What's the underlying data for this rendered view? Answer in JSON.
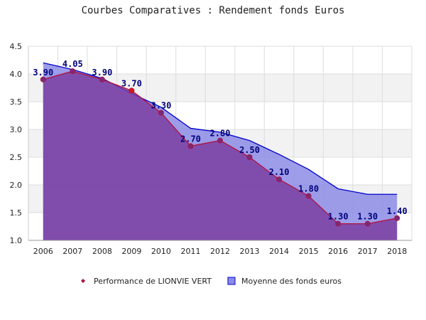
{
  "chart_data": {
    "type": "area",
    "title": "Courbes Comparatives : Rendement fonds Euros",
    "xlabel": "",
    "ylabel": "",
    "categories": [
      "2006",
      "2007",
      "2008",
      "2009",
      "2010",
      "2011",
      "2012",
      "2013",
      "2014",
      "2015",
      "2016",
      "2017",
      "2018"
    ],
    "ylim": [
      1.0,
      4.5
    ],
    "yticks": [
      "1.0",
      "1.5",
      "2.0",
      "2.5",
      "3.0",
      "3.5",
      "4.0",
      "4.5"
    ],
    "grid": true,
    "legend_position": "bottom",
    "series": [
      {
        "name": "Performance de LIONVIE VERT",
        "type": "line",
        "values": [
          3.9,
          4.05,
          3.9,
          3.7,
          3.3,
          2.7,
          2.8,
          2.5,
          2.1,
          1.8,
          1.3,
          1.3,
          1.4
        ],
        "labels": [
          "3.90",
          "4.05",
          "3.90",
          "3.70",
          "3.30",
          "2.70",
          "2.80",
          "2.50",
          "2.10",
          "1.80",
          "1.30",
          "1.30",
          "1.40"
        ]
      },
      {
        "name": "Moyenne des fonds euros",
        "type": "area",
        "values": [
          4.2,
          4.08,
          3.92,
          3.65,
          3.4,
          3.02,
          2.95,
          2.8,
          2.55,
          2.28,
          1.93,
          1.83,
          1.83
        ]
      }
    ],
    "colors": {
      "moyenne_fill": "#8c8ce6",
      "moyenne_line": "#0000cc",
      "perf_fill": "#7a3a9e",
      "perf_line": "#b0103a",
      "marker_fill": "#7a2a7a",
      "highlight_marker": "#d41c1c",
      "label_color": "#00007a",
      "band": "#f2f2f2",
      "grid": "#dddddd"
    }
  }
}
